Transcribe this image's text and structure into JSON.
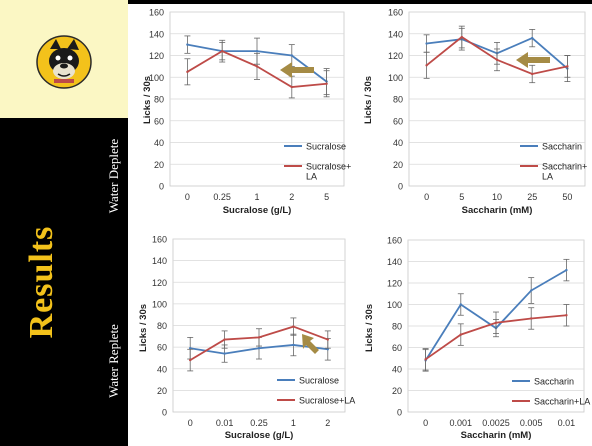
{
  "slide": {
    "title": "Results",
    "section_top": "Water Deplete",
    "section_bottom": "Water Replete",
    "accent_color": "#f3c21b",
    "sidebar_color": "#000000",
    "logo_bg": "#fbf7c4",
    "logo_icon": "bulldog-mascot-icon"
  },
  "chart_data": [
    {
      "id": "deplete-sucralose",
      "type": "line",
      "xlabel": "Sucralose (g/L)",
      "ylabel": "Licks / 30s",
      "categories": [
        "0",
        "0.25",
        "1",
        "2",
        "5"
      ],
      "ylim": [
        0,
        160
      ],
      "yticks": [
        "0",
        "20",
        "40",
        "60",
        "80",
        "100",
        "120",
        "140",
        "160"
      ],
      "grid": true,
      "legend_position": "bottom-right",
      "series": [
        {
          "name": "Sucralose",
          "color": "#4a7ebb",
          "values": [
            130,
            124,
            124,
            120,
            96
          ],
          "err": [
            8,
            8,
            12,
            10,
            12
          ]
        },
        {
          "name": "Sucralose+ LA",
          "color": "#be4b48",
          "values": [
            105,
            124,
            110,
            91,
            94
          ],
          "err": [
            12,
            10,
            12,
            10,
            12
          ]
        }
      ],
      "annotation": {
        "shape": "arrow",
        "direction": "left",
        "color": "#a58b45"
      }
    },
    {
      "id": "deplete-saccharin",
      "type": "line",
      "xlabel": "Saccharin (mM)",
      "ylabel": "Licks / 30s",
      "categories": [
        "0",
        "5",
        "10",
        "25",
        "50"
      ],
      "ylim": [
        0,
        160
      ],
      "yticks": [
        "0",
        "20",
        "40",
        "60",
        "80",
        "100",
        "120",
        "140",
        "160"
      ],
      "grid": true,
      "legend_position": "bottom-right",
      "series": [
        {
          "name": "Saccharin",
          "color": "#4a7ebb",
          "values": [
            131,
            135,
            122,
            136,
            108
          ],
          "err": [
            8,
            10,
            10,
            8,
            12
          ]
        },
        {
          "name": "Saccharin+ LA",
          "color": "#be4b48",
          "values": [
            111,
            137,
            116,
            103,
            110
          ],
          "err": [
            12,
            10,
            10,
            8,
            10
          ]
        }
      ],
      "annotation": {
        "shape": "arrow",
        "direction": "left",
        "color": "#a58b45"
      }
    },
    {
      "id": "replete-sucralose",
      "type": "line",
      "xlabel": "Sucralose (g/L)",
      "ylabel": "Licks / 30s",
      "categories": [
        "0",
        "0.01",
        "0.25",
        "1",
        "2"
      ],
      "ylim": [
        0,
        160
      ],
      "yticks": [
        "0",
        "20",
        "40",
        "60",
        "80",
        "100",
        "120",
        "140",
        "160"
      ],
      "grid": true,
      "legend_position": "bottom-right",
      "series": [
        {
          "name": "Sucralose",
          "color": "#4a7ebb",
          "values": [
            59,
            54,
            59,
            62,
            58
          ],
          "err": [
            10,
            8,
            10,
            10,
            10
          ]
        },
        {
          "name": "Sucralose+LA",
          "color": "#be4b48",
          "values": [
            48,
            67,
            69,
            79,
            67
          ],
          "err": [
            10,
            8,
            8,
            8,
            8
          ]
        }
      ],
      "annotation": {
        "shape": "arrow",
        "direction": "up-left",
        "color": "#a58b45"
      }
    },
    {
      "id": "replete-saccharin",
      "type": "line",
      "xlabel": "Saccharin (mM)",
      "ylabel": "Licks / 30s",
      "categories": [
        "0",
        "0.001",
        "0.0025",
        "0.005",
        "0.01"
      ],
      "ylim": [
        0,
        160
      ],
      "yticks": [
        "0",
        "20",
        "40",
        "60",
        "80",
        "100",
        "120",
        "140",
        "160"
      ],
      "grid": true,
      "legend_position": "bottom-right",
      "series": [
        {
          "name": "Saccharin",
          "color": "#4a7ebb",
          "values": [
            48,
            100,
            78,
            113,
            132
          ],
          "err": [
            10,
            10,
            8,
            12,
            10
          ]
        },
        {
          "name": "Saccharin+LA",
          "color": "#be4b48",
          "values": [
            49,
            72,
            83,
            87,
            90
          ],
          "err": [
            10,
            10,
            10,
            10,
            10
          ]
        }
      ]
    }
  ]
}
